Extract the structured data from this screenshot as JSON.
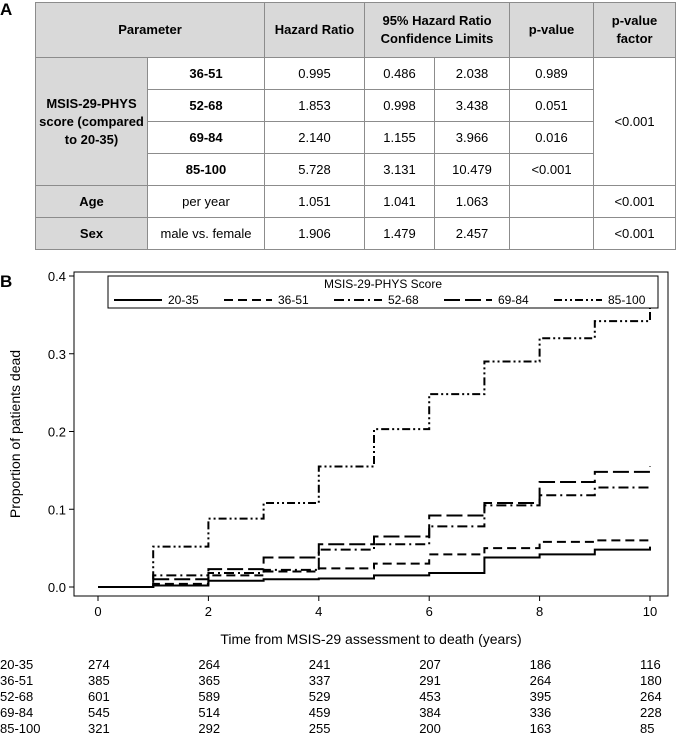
{
  "panel_a_label": "A",
  "panel_b_label": "B",
  "table": {
    "headers": {
      "parameter": "Parameter",
      "hazard_ratio": "Hazard Ratio",
      "ci": "95% Hazard Ratio Confidence Limits",
      "p_value": "p-value",
      "p_value_factor": "p-value factor"
    },
    "msis_label": "MSIS-29-PHYS score (compared to 20-35)",
    "msis_rows": [
      {
        "group": "36-51",
        "hr": "0.995",
        "lower": "0.486",
        "upper": "2.038",
        "p": "0.989"
      },
      {
        "group": "52-68",
        "hr": "1.853",
        "lower": "0.998",
        "upper": "3.438",
        "p": "0.051"
      },
      {
        "group": "69-84",
        "hr": "2.140",
        "lower": "1.155",
        "upper": "3.966",
        "p": "0.016"
      },
      {
        "group": "85-100",
        "hr": "5.728",
        "lower": "3.131",
        "upper": "10.479",
        "p": "<0.001"
      }
    ],
    "msis_factor_p": "<0.001",
    "age": {
      "label": "Age",
      "unit": "per year",
      "hr": "1.051",
      "lower": "1.041",
      "upper": "1.063",
      "p": "",
      "factor_p": "<0.001"
    },
    "sex": {
      "label": "Sex",
      "unit": "male vs. female",
      "hr": "1.906",
      "lower": "1.479",
      "upper": "2.457",
      "p": "",
      "factor_p": "<0.001"
    }
  },
  "chart_data": {
    "type": "line",
    "step": true,
    "xlabel": "Time from MSIS-29 assessment to death (years)",
    "ylabel": "Proportion of patients dead",
    "xlim": [
      0,
      10
    ],
    "ylim": [
      0,
      0.4
    ],
    "xticks": [
      0,
      2,
      4,
      6,
      8,
      10
    ],
    "yticks": [
      0.0,
      0.1,
      0.2,
      0.3,
      0.4
    ],
    "ytick_labels": [
      "0.0",
      "0.1",
      "0.2",
      "0.3",
      "0.4"
    ],
    "legend_title": "MSIS-29-PHYS Score",
    "legend_position": "top",
    "series": [
      {
        "name": "20-35",
        "dash": "solid",
        "x": [
          0,
          1,
          2,
          3,
          4,
          5,
          6,
          7,
          8,
          9,
          10
        ],
        "y": [
          0,
          0.002,
          0.008,
          0.01,
          0.011,
          0.015,
          0.018,
          0.038,
          0.042,
          0.048,
          0.052
        ]
      },
      {
        "name": "36-51",
        "dash": "dash",
        "x": [
          0,
          1,
          2,
          3,
          4,
          5,
          6,
          7,
          8,
          9,
          10
        ],
        "y": [
          0,
          0.004,
          0.015,
          0.02,
          0.024,
          0.03,
          0.042,
          0.05,
          0.058,
          0.06,
          0.062
        ]
      },
      {
        "name": "52-68",
        "dash": "dashdot",
        "x": [
          0,
          1,
          2,
          3,
          4,
          5,
          6,
          7,
          8,
          9,
          10
        ],
        "y": [
          0,
          0.015,
          0.018,
          0.022,
          0.048,
          0.055,
          0.078,
          0.105,
          0.118,
          0.128,
          0.13
        ]
      },
      {
        "name": "69-84",
        "dash": "longdash",
        "x": [
          0,
          1,
          2,
          3,
          4,
          5,
          6,
          7,
          8,
          9,
          10
        ],
        "y": [
          0,
          0.01,
          0.023,
          0.038,
          0.055,
          0.065,
          0.092,
          0.108,
          0.135,
          0.148,
          0.155
        ]
      },
      {
        "name": "85-100",
        "dash": "dashdotdot",
        "x": [
          0,
          1,
          2,
          3,
          4,
          5,
          6,
          7,
          8,
          9,
          10
        ],
        "y": [
          0,
          0.052,
          0.088,
          0.108,
          0.155,
          0.203,
          0.248,
          0.29,
          0.32,
          0.342,
          0.362
        ]
      }
    ],
    "risk_table": {
      "times": [
        0,
        2,
        4,
        6,
        8,
        10
      ],
      "rows": [
        {
          "group": "20-35",
          "values": [
            "274",
            "264",
            "241",
            "207",
            "186",
            "116"
          ]
        },
        {
          "group": "36-51",
          "values": [
            "385",
            "365",
            "337",
            "291",
            "264",
            "180"
          ]
        },
        {
          "group": "52-68",
          "values": [
            "601",
            "589",
            "529",
            "453",
            "395",
            "264"
          ]
        },
        {
          "group": "69-84",
          "values": [
            "545",
            "514",
            "459",
            "384",
            "336",
            "228"
          ]
        },
        {
          "group": "85-100",
          "values": [
            "321",
            "292",
            "255",
            "200",
            "163",
            "85"
          ]
        }
      ]
    }
  }
}
